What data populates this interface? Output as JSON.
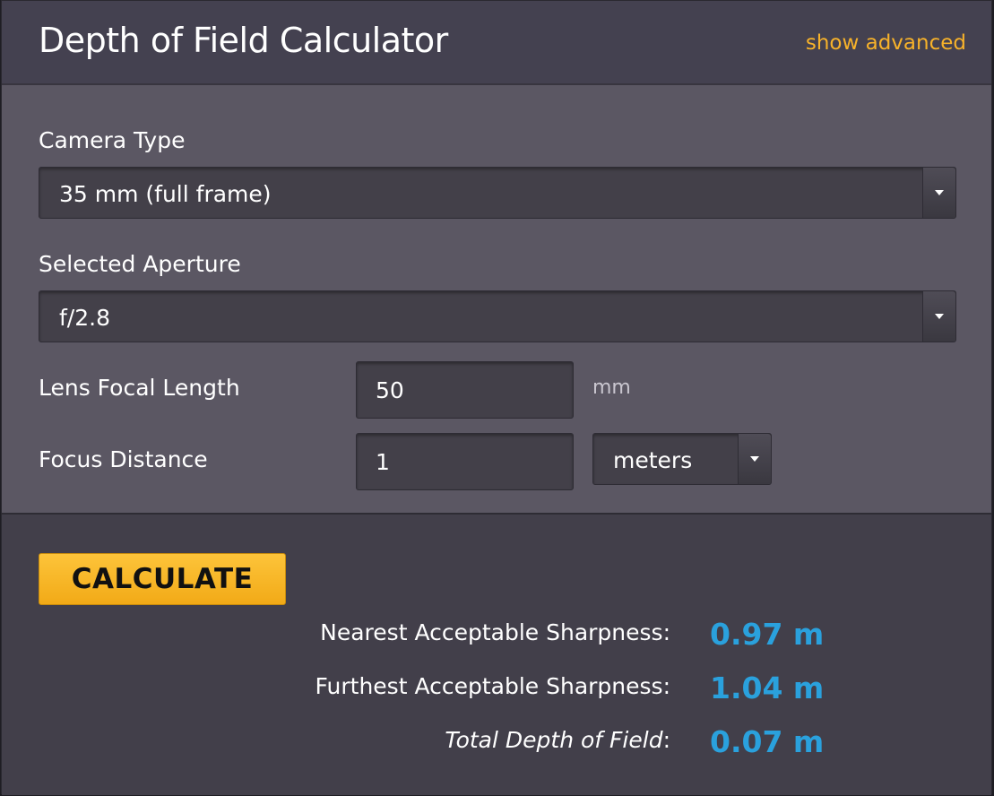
{
  "header": {
    "title": "Depth of Field Calculator",
    "show_advanced": "show advanced"
  },
  "form": {
    "camera_type": {
      "label": "Camera Type",
      "selected": "35 mm (full frame)"
    },
    "aperture": {
      "label": "Selected Aperture",
      "selected": "f/2.8"
    },
    "focal_length": {
      "label": "Lens Focal Length",
      "value": "50",
      "unit": "mm"
    },
    "focus_distance": {
      "label": "Focus Distance",
      "value": "1",
      "unit_selected": "meters"
    }
  },
  "results": {
    "calculate_label": "CALCULATE",
    "nearest": {
      "label": "Nearest Acceptable Sharpness:",
      "value": "0.97 m"
    },
    "furthest": {
      "label": "Furthest Acceptable Sharpness:",
      "value": "1.04 m"
    },
    "total": {
      "label": "Total Depth of Field",
      "suffix": ":",
      "value": "0.07 m"
    }
  },
  "colors": {
    "accent": "#f7b22a",
    "result_value": "#2aa1dd",
    "button": "#fdc43a"
  },
  "icons": {
    "dropdown": "caret-down-icon"
  }
}
